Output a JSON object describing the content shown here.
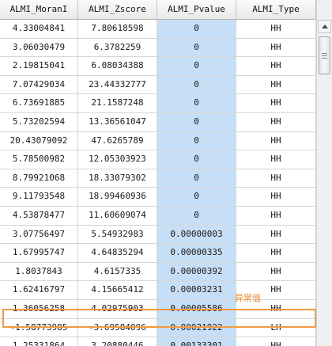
{
  "table": {
    "columns": [
      "ALMI_MoranI",
      "ALMI_Zscore",
      "ALMI_Pvalue",
      "ALMI_Type"
    ],
    "rows": [
      [
        "4.33004841",
        "7.80618598",
        "0",
        "HH"
      ],
      [
        "3.06030479",
        "6.3782259",
        "0",
        "HH"
      ],
      [
        "2.19815041",
        "6.08034388",
        "0",
        "HH"
      ],
      [
        "7.07429034",
        "23.44332777",
        "0",
        "HH"
      ],
      [
        "6.73691885",
        "21.1587248",
        "0",
        "HH"
      ],
      [
        "5.73202594",
        "13.36561047",
        "0",
        "HH"
      ],
      [
        "20.43079092",
        "47.6265789",
        "0",
        "HH"
      ],
      [
        "5.78500982",
        "12.05303923",
        "0",
        "HH"
      ],
      [
        "8.79921068",
        "18.33079302",
        "0",
        "HH"
      ],
      [
        "9.11793548",
        "18.99460936",
        "0",
        "HH"
      ],
      [
        "4.53878477",
        "11.60609074",
        "0",
        "HH"
      ],
      [
        "3.07756497",
        "5.54932983",
        "0.00000003",
        "HH"
      ],
      [
        "1.67995747",
        "4.64835294",
        "0.00000335",
        "HH"
      ],
      [
        "1.8037843",
        "4.6157335",
        "0.00000392",
        "HH"
      ],
      [
        "1.62416797",
        "4.15665412",
        "0.00003231",
        "HH"
      ],
      [
        "1.36056258",
        "4.02975903",
        "0.00005586",
        "HH"
      ],
      [
        "-1.58773985",
        "-3.69584096",
        "0.00021922",
        "LH"
      ],
      [
        "1.25331864",
        "3.20880446",
        "0.00133301",
        "HH"
      ]
    ]
  },
  "annotation": {
    "text": "异常值"
  },
  "colors": {
    "pvalue_column": "#c7def7",
    "highlight_border": "#f29a3f",
    "annotation_text": "#f08a24"
  },
  "icons": {
    "scroll_up": "scroll-up-icon",
    "scroll_thumb_grip": "scroll-thumb-grip-icon"
  }
}
